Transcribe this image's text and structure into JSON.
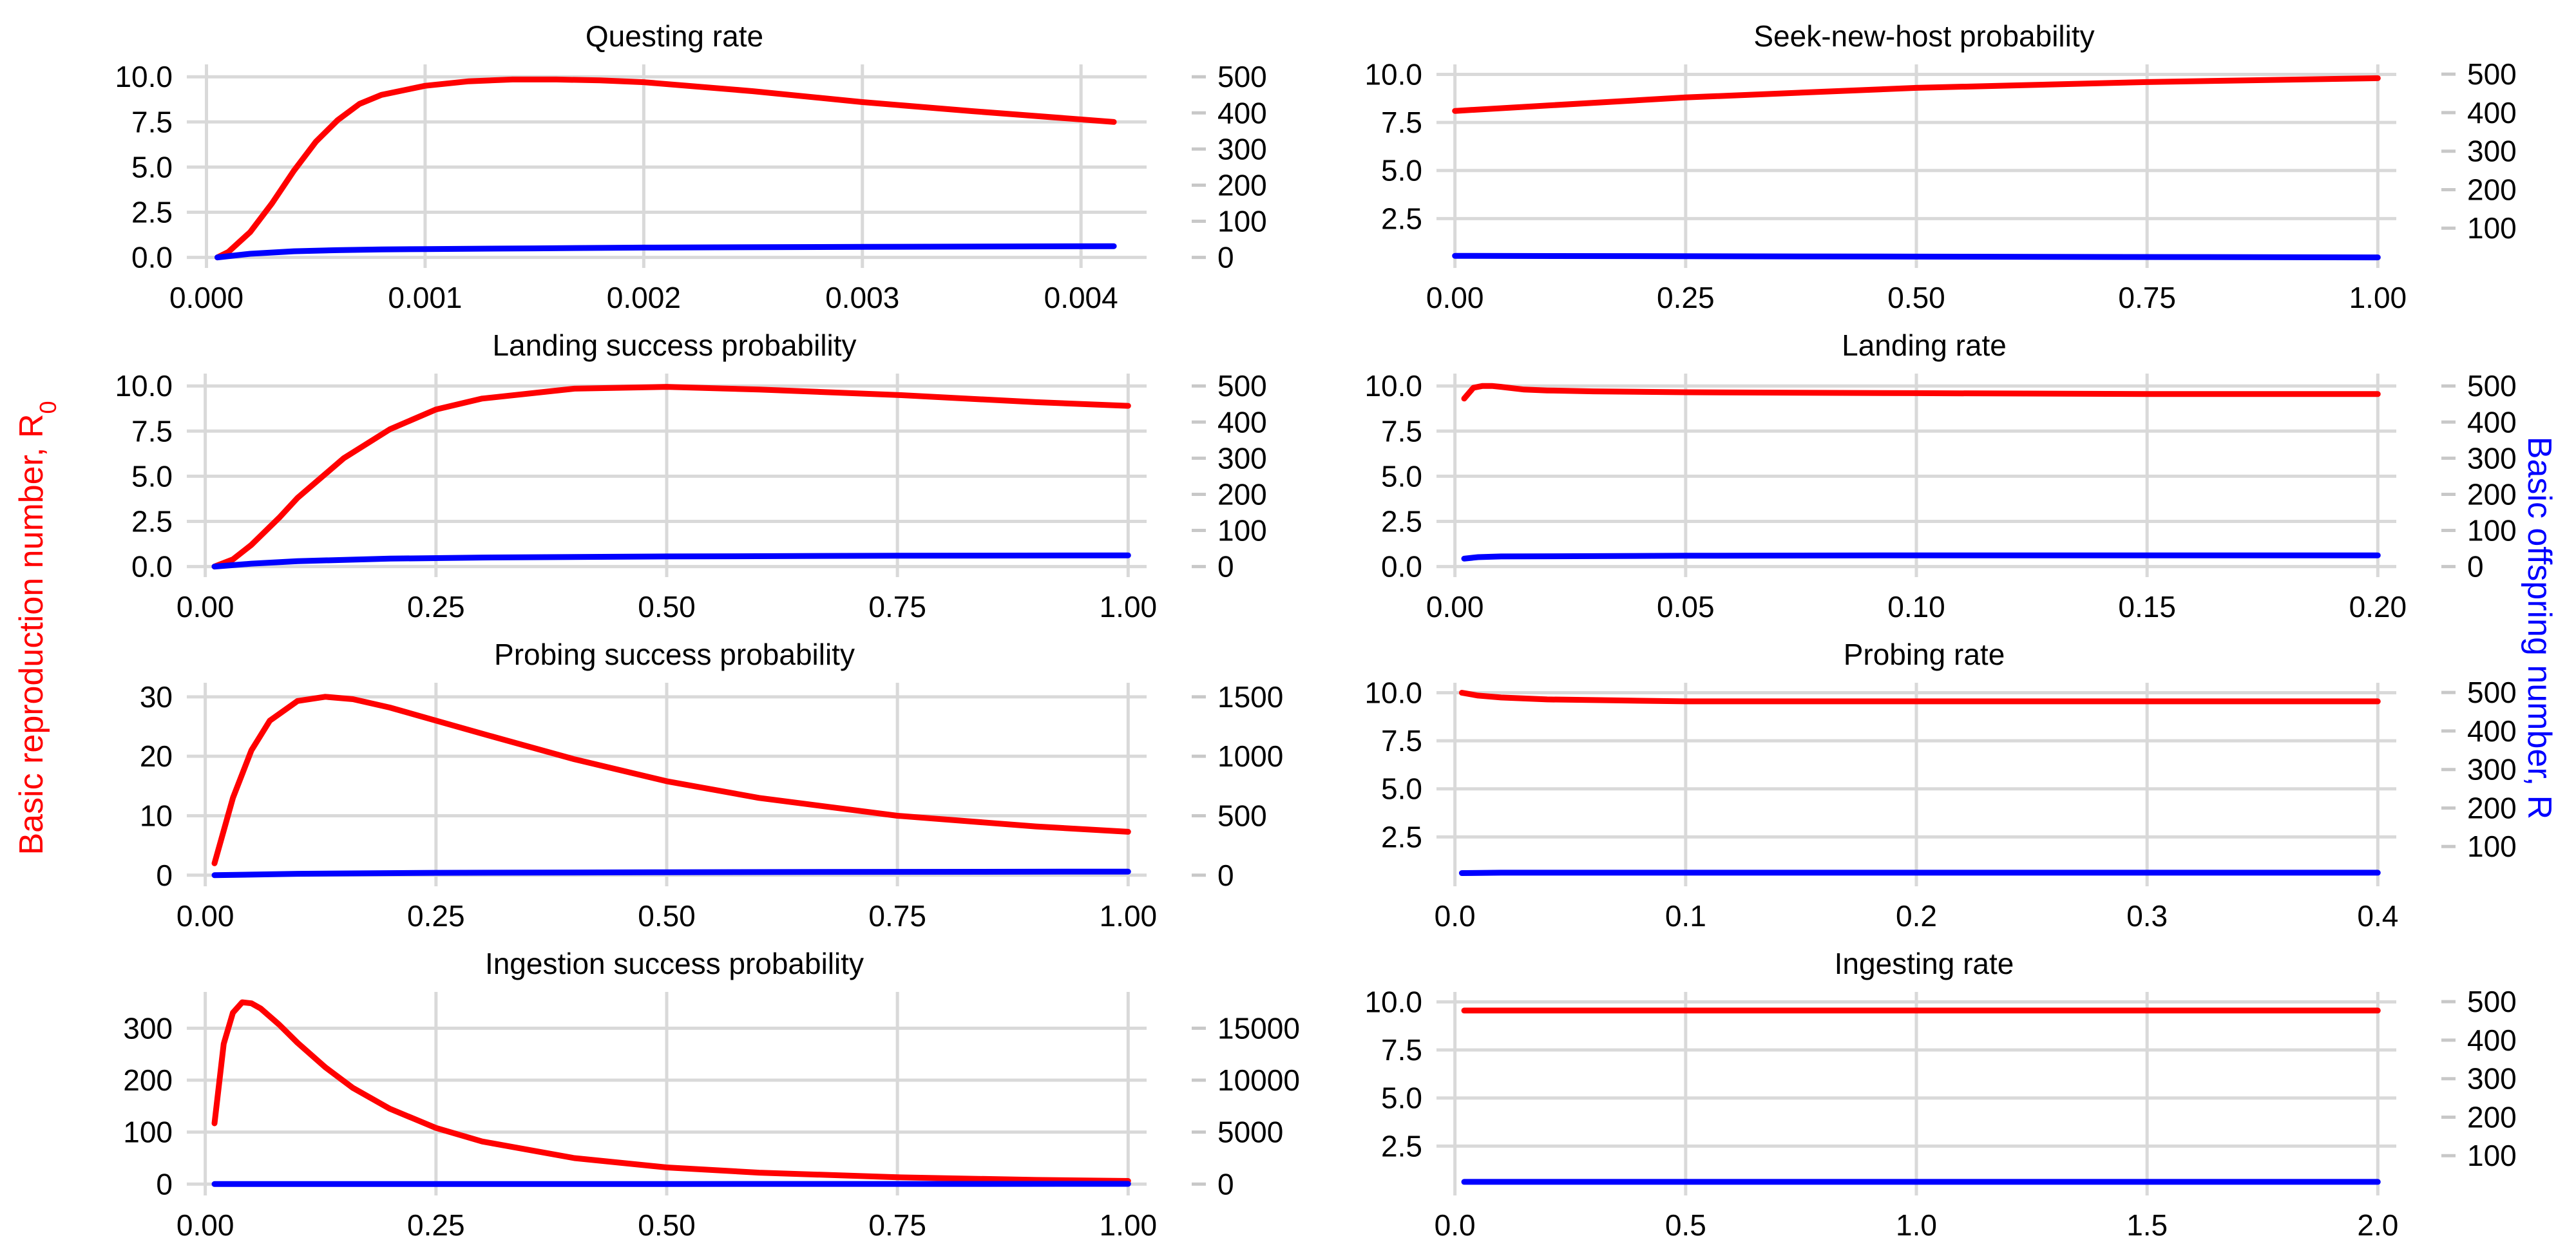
{
  "figure": {
    "left_axis_label_main": "Basic reproduction number, R",
    "left_axis_label_sub": "0",
    "right_axis_label": "Basic offspring number, R",
    "left_color": "#ff0000",
    "right_color": "#0000ff"
  },
  "chart_data": [
    {
      "type": "line",
      "title": "Questing rate",
      "x_ticks": [
        "0.000",
        "0.001",
        "0.002",
        "0.003",
        "0.004"
      ],
      "xlim": [
        -9e-05,
        0.0043
      ],
      "y_left_ticks": [
        "0.0",
        "2.5",
        "5.0",
        "7.5",
        "10.0"
      ],
      "y_left_lim": [
        -0.3,
        10.4
      ],
      "y_right_ticks": [
        "0",
        "100",
        "200",
        "300",
        "400",
        "500"
      ],
      "y_right_lim": [
        -15,
        520
      ],
      "grid": true,
      "series": [
        {
          "axis": "left",
          "color": "#ff0000",
          "x": [
            5e-05,
            0.0001,
            0.0002,
            0.0003,
            0.0004,
            0.0005,
            0.0006,
            0.0007,
            0.0008,
            0.001,
            0.0012,
            0.0014,
            0.0016,
            0.0018,
            0.002,
            0.0025,
            0.003,
            0.0035,
            0.00415
          ],
          "y": [
            0.0,
            0.3,
            1.4,
            3.0,
            4.8,
            6.4,
            7.6,
            8.5,
            9.0,
            9.5,
            9.75,
            9.85,
            9.85,
            9.8,
            9.7,
            9.2,
            8.6,
            8.1,
            7.5
          ]
        },
        {
          "axis": "right",
          "color": "#0000ff",
          "x": [
            5e-05,
            0.0002,
            0.0004,
            0.0006,
            0.0008,
            0.001,
            0.0015,
            0.002,
            0.003,
            0.00415
          ],
          "y": [
            0,
            10,
            17,
            20,
            22,
            23,
            25,
            27,
            29,
            31
          ]
        }
      ]
    },
    {
      "type": "line",
      "title": "Seek-new-host probability",
      "x_ticks": [
        "0.00",
        "0.25",
        "0.50",
        "0.75",
        "1.00"
      ],
      "xlim": [
        -0.02,
        1.02
      ],
      "y_left_ticks": [
        "2.5",
        "5.0",
        "7.5",
        "10.0"
      ],
      "y_left_lim": [
        0.2,
        10.25
      ],
      "y_right_ticks": [
        "100",
        "200",
        "300",
        "400",
        "500"
      ],
      "y_right_lim": [
        10,
        512
      ],
      "grid": true,
      "series": [
        {
          "axis": "left",
          "color": "#ff0000",
          "x": [
            0,
            0.25,
            0.5,
            0.75,
            1.0
          ],
          "y": [
            8.1,
            8.8,
            9.3,
            9.6,
            9.8
          ]
        },
        {
          "axis": "right",
          "color": "#0000ff",
          "x": [
            0,
            0.5,
            1.0
          ],
          "y": [
            28,
            26,
            24
          ]
        }
      ]
    },
    {
      "type": "line",
      "title": "Landing success probability",
      "x_ticks": [
        "0.00",
        "0.25",
        "0.50",
        "0.75",
        "1.00"
      ],
      "xlim": [
        -0.02,
        1.02
      ],
      "y_left_ticks": [
        "0.0",
        "2.5",
        "5.0",
        "7.5",
        "10.0"
      ],
      "y_left_lim": [
        -0.3,
        10.4
      ],
      "y_right_ticks": [
        "0",
        "100",
        "200",
        "300",
        "400",
        "500"
      ],
      "y_right_lim": [
        -15,
        520
      ],
      "grid": true,
      "series": [
        {
          "axis": "left",
          "color": "#ff0000",
          "x": [
            0.01,
            0.03,
            0.05,
            0.08,
            0.1,
            0.15,
            0.2,
            0.25,
            0.3,
            0.4,
            0.5,
            0.6,
            0.75,
            0.9,
            1.0
          ],
          "y": [
            0.0,
            0.4,
            1.2,
            2.7,
            3.8,
            6.0,
            7.6,
            8.7,
            9.3,
            9.85,
            9.95,
            9.8,
            9.5,
            9.1,
            8.9
          ]
        },
        {
          "axis": "right",
          "color": "#0000ff",
          "x": [
            0.01,
            0.05,
            0.1,
            0.2,
            0.3,
            0.5,
            0.75,
            1.0
          ],
          "y": [
            0,
            8,
            15,
            22,
            25,
            28,
            30,
            31
          ]
        }
      ]
    },
    {
      "type": "line",
      "title": "Landing rate",
      "x_ticks": [
        "0.00",
        "0.05",
        "0.10",
        "0.15",
        "0.20"
      ],
      "xlim": [
        -0.004,
        0.204
      ],
      "y_left_ticks": [
        "0.0",
        "2.5",
        "5.0",
        "7.5",
        "10.0"
      ],
      "y_left_lim": [
        -0.3,
        10.4
      ],
      "y_right_ticks": [
        "0",
        "100",
        "200",
        "300",
        "400",
        "500"
      ],
      "y_right_lim": [
        -15,
        520
      ],
      "grid": true,
      "series": [
        {
          "axis": "left",
          "color": "#ff0000",
          "x": [
            0.002,
            0.004,
            0.006,
            0.008,
            0.01,
            0.015,
            0.02,
            0.03,
            0.05,
            0.1,
            0.15,
            0.2
          ],
          "y": [
            9.3,
            9.9,
            10.0,
            10.0,
            9.95,
            9.8,
            9.75,
            9.7,
            9.65,
            9.6,
            9.55,
            9.55
          ]
        },
        {
          "axis": "right",
          "color": "#0000ff",
          "x": [
            0.002,
            0.005,
            0.01,
            0.05,
            0.1,
            0.2
          ],
          "y": [
            22,
            26,
            28,
            30,
            31,
            31
          ]
        }
      ]
    },
    {
      "type": "line",
      "title": "Probing success probability",
      "x_ticks": [
        "0.00",
        "0.25",
        "0.50",
        "0.75",
        "1.00"
      ],
      "xlim": [
        -0.02,
        1.02
      ],
      "y_left_ticks": [
        "0",
        "10",
        "20",
        "30"
      ],
      "y_left_lim": [
        -1,
        31.5
      ],
      "y_right_ticks": [
        "0",
        "500",
        "1000",
        "1500"
      ],
      "y_right_lim": [
        -50,
        1575
      ],
      "grid": true,
      "series": [
        {
          "axis": "left",
          "color": "#ff0000",
          "x": [
            0.01,
            0.03,
            0.05,
            0.07,
            0.1,
            0.13,
            0.16,
            0.2,
            0.25,
            0.3,
            0.4,
            0.5,
            0.6,
            0.75,
            0.9,
            1.0
          ],
          "y": [
            2.0,
            13.0,
            21.0,
            26.0,
            29.3,
            30.0,
            29.6,
            28.2,
            26.0,
            23.8,
            19.5,
            15.8,
            13.0,
            10.0,
            8.2,
            7.3
          ]
        },
        {
          "axis": "right",
          "color": "#0000ff",
          "x": [
            0.01,
            0.1,
            0.25,
            0.5,
            0.75,
            1.0
          ],
          "y": [
            0,
            12,
            20,
            25,
            28,
            30
          ]
        }
      ]
    },
    {
      "type": "line",
      "title": "Probing rate",
      "x_ticks": [
        "0.0",
        "0.1",
        "0.2",
        "0.3",
        "0.4"
      ],
      "xlim": [
        -0.008,
        0.408
      ],
      "y_left_ticks": [
        "2.5",
        "5.0",
        "7.5",
        "10.0"
      ],
      "y_left_lim": [
        0.2,
        10.25
      ],
      "y_right_ticks": [
        "100",
        "200",
        "300",
        "400",
        "500"
      ],
      "y_right_lim": [
        10,
        512
      ],
      "grid": true,
      "series": [
        {
          "axis": "left",
          "color": "#ff0000",
          "x": [
            0.003,
            0.01,
            0.02,
            0.04,
            0.07,
            0.1,
            0.2,
            0.3,
            0.4
          ],
          "y": [
            10.0,
            9.85,
            9.75,
            9.65,
            9.6,
            9.55,
            9.55,
            9.55,
            9.55
          ]
        },
        {
          "axis": "right",
          "color": "#0000ff",
          "x": [
            0.003,
            0.02,
            0.1,
            0.2,
            0.4
          ],
          "y": [
            31,
            32,
            32,
            32,
            32
          ]
        }
      ]
    },
    {
      "type": "line",
      "title": "Ingestion success probability",
      "x_ticks": [
        "0.00",
        "0.25",
        "0.50",
        "0.75",
        "1.00"
      ],
      "xlim": [
        -0.02,
        1.02
      ],
      "y_left_ticks": [
        "0",
        "100",
        "200",
        "300"
      ],
      "y_left_lim": [
        -12,
        360
      ],
      "y_right_ticks": [
        "0",
        "5000",
        "10000",
        "15000"
      ],
      "y_right_lim": [
        -600,
        18000
      ],
      "grid": true,
      "series": [
        {
          "axis": "left",
          "color": "#ff0000",
          "x": [
            0.01,
            0.02,
            0.03,
            0.04,
            0.05,
            0.06,
            0.08,
            0.1,
            0.13,
            0.16,
            0.2,
            0.25,
            0.3,
            0.4,
            0.5,
            0.6,
            0.75,
            0.9,
            1.0
          ],
          "y": [
            117,
            270,
            330,
            350,
            348,
            338,
            307,
            272,
            225,
            185,
            145,
            108,
            82,
            50,
            32,
            22,
            13,
            8,
            6
          ]
        },
        {
          "axis": "right",
          "color": "#0000ff",
          "x": [
            0.01,
            0.25,
            0.5,
            0.75,
            1.0
          ],
          "y": [
            0,
            5,
            10,
            15,
            20
          ]
        }
      ]
    },
    {
      "type": "line",
      "title": "Ingesting rate",
      "x_ticks": [
        "0.0",
        "0.5",
        "1.0",
        "1.5",
        "2.0"
      ],
      "xlim": [
        -0.04,
        2.04
      ],
      "y_left_ticks": [
        "2.5",
        "5.0",
        "7.5",
        "10.0"
      ],
      "y_left_lim": [
        0.2,
        10.25
      ],
      "y_right_ticks": [
        "100",
        "200",
        "300",
        "400",
        "500"
      ],
      "y_right_lim": [
        10,
        512
      ],
      "grid": true,
      "series": [
        {
          "axis": "left",
          "color": "#ff0000",
          "x": [
            0.02,
            0.5,
            1.0,
            1.5,
            2.0
          ],
          "y": [
            9.55,
            9.55,
            9.55,
            9.55,
            9.55
          ]
        },
        {
          "axis": "right",
          "color": "#0000ff",
          "x": [
            0.02,
            1.0,
            2.0
          ],
          "y": [
            32,
            32,
            32
          ]
        }
      ]
    }
  ]
}
